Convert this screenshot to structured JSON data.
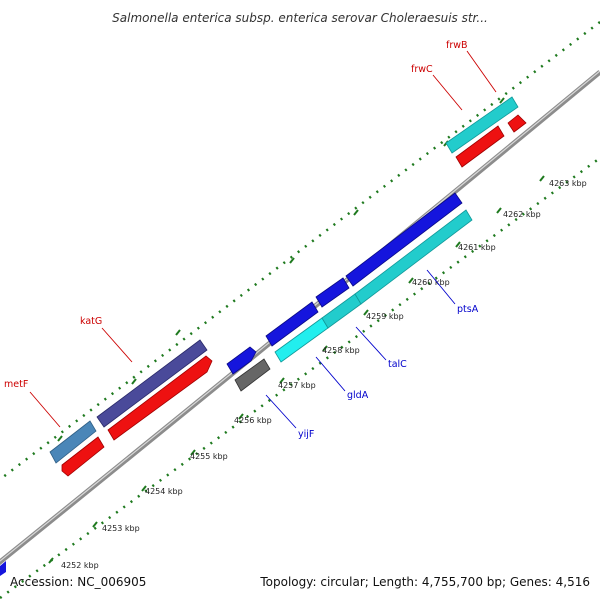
{
  "title": "Salmonella enterica subsp. enterica serovar Choleraesuis str...",
  "footer": {
    "accession": "Accession: NC_006905",
    "summary": "Topology: circular; Length: 4,755,700 bp; Genes: 4,516"
  },
  "colors": {
    "backbone": "#8c8c8c",
    "tick": "#1f7a1f",
    "label_red": "#cc0000",
    "label_blue": "#0000cc",
    "blue": "#1515dd",
    "cyan": "#22cccc",
    "navy": "#4a4a9a",
    "red": "#ee1111",
    "steel": "#4a86b8",
    "gray": "#666666"
  },
  "ticks": [
    {
      "label": "4252 kbp"
    },
    {
      "label": "4253 kbp"
    },
    {
      "label": "4254 kbp"
    },
    {
      "label": "4255 kbp"
    },
    {
      "label": "4256 kbp"
    },
    {
      "label": "4257 kbp"
    },
    {
      "label": "4258 kbp"
    },
    {
      "label": "4259 kbp"
    },
    {
      "label": "4260 kbp"
    },
    {
      "label": "4261 kbp"
    },
    {
      "label": "4262 kbp"
    },
    {
      "label": "4263 kbp"
    }
  ],
  "genes": [
    {
      "name": "metF",
      "color": "label_red"
    },
    {
      "name": "katG",
      "color": "label_red"
    },
    {
      "name": "frwC",
      "color": "label_red"
    },
    {
      "name": "frwB",
      "color": "label_red"
    },
    {
      "name": "yijF",
      "color": "label_blue"
    },
    {
      "name": "gldA",
      "color": "label_blue"
    },
    {
      "name": "talC",
      "color": "label_blue"
    },
    {
      "name": "ptsA",
      "color": "label_blue"
    }
  ]
}
